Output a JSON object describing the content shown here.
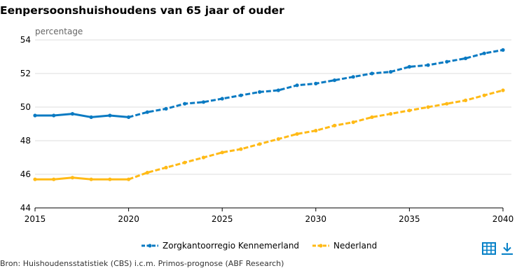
{
  "title": "Eenpersoonshuishoudens van 65 jaar of ouder",
  "source": "Bron: Huishoudensstatistiek (CBS) i.c.m. Primos-prognose (ABF Research)",
  "icons": {
    "table": "table-icon",
    "download": "download-icon"
  },
  "colors": {
    "accent": "#0580c7",
    "series1": "#0a7ac2",
    "series2": "#ffba16",
    "grid": "#dcdcdc"
  },
  "chart_data": {
    "type": "line",
    "title": "Eenpersoonshuishoudens van 65 jaar of ouder",
    "xlabel": "",
    "ylabel": "percentage",
    "xlim": [
      2015,
      2040
    ],
    "ylim": [
      44,
      54
    ],
    "xticks": [
      2015,
      2020,
      2025,
      2030,
      2035,
      2040
    ],
    "yticks": [
      44,
      46,
      48,
      50,
      52,
      54
    ],
    "grid": "horizontal",
    "legend": "bottom-center",
    "solid_until": 2020,
    "x": [
      2015,
      2016,
      2017,
      2018,
      2019,
      2020,
      2021,
      2022,
      2023,
      2024,
      2025,
      2026,
      2027,
      2028,
      2029,
      2030,
      2031,
      2032,
      2033,
      2034,
      2035,
      2036,
      2037,
      2038,
      2039,
      2040
    ],
    "series": [
      {
        "name": "Zorgkantoorregio Kennemerland",
        "color": "#0a7ac2",
        "values": [
          49.5,
          49.5,
          49.6,
          49.4,
          49.5,
          49.4,
          49.7,
          49.9,
          50.2,
          50.3,
          50.5,
          50.7,
          50.9,
          51.0,
          51.3,
          51.4,
          51.6,
          51.8,
          52.0,
          52.1,
          52.4,
          52.5,
          52.7,
          52.9,
          53.2,
          53.4
        ]
      },
      {
        "name": "Nederland",
        "color": "#ffba16",
        "values": [
          45.7,
          45.7,
          45.8,
          45.7,
          45.7,
          45.7,
          46.1,
          46.4,
          46.7,
          47.0,
          47.3,
          47.5,
          47.8,
          48.1,
          48.4,
          48.6,
          48.9,
          49.1,
          49.4,
          49.6,
          49.8,
          50.0,
          50.2,
          50.4,
          50.7,
          51.0
        ]
      }
    ]
  }
}
